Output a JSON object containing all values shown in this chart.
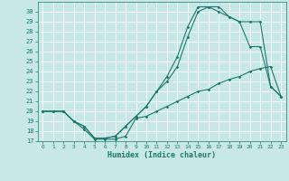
{
  "title": "",
  "xlabel": "Humidex (Indice chaleur)",
  "ylabel": "",
  "bg_color": "#c8e8e8",
  "line_color": "#1a7a6a",
  "grid_color": "#ffffff",
  "xlim": [
    -0.5,
    23.5
  ],
  "ylim": [
    17,
    31
  ],
  "xticks": [
    0,
    1,
    2,
    3,
    4,
    5,
    6,
    7,
    8,
    9,
    10,
    11,
    12,
    13,
    14,
    15,
    16,
    17,
    18,
    19,
    20,
    21,
    22,
    23
  ],
  "yticks": [
    17,
    18,
    19,
    20,
    21,
    22,
    23,
    24,
    25,
    26,
    27,
    28,
    29,
    30
  ],
  "line1_x": [
    0,
    1,
    2,
    3,
    4,
    5,
    6,
    7,
    8,
    9,
    10,
    11,
    12,
    13,
    14,
    15,
    16,
    17,
    18,
    19,
    20,
    21,
    22,
    23
  ],
  "line1_y": [
    20.0,
    20.0,
    20.0,
    19.0,
    18.2,
    17.2,
    17.2,
    17.2,
    17.5,
    19.3,
    19.5,
    20.0,
    20.5,
    21.0,
    21.5,
    22.0,
    22.2,
    22.8,
    23.2,
    23.5,
    24.0,
    24.3,
    24.5,
    21.5
  ],
  "line2_x": [
    0,
    1,
    2,
    3,
    4,
    5,
    6,
    7,
    8,
    9,
    10,
    11,
    12,
    13,
    14,
    15,
    16,
    17,
    18,
    19,
    20,
    21,
    22,
    23
  ],
  "line2_y": [
    20.0,
    20.0,
    20.0,
    19.0,
    18.5,
    17.3,
    17.3,
    17.5,
    18.5,
    19.5,
    20.5,
    22.0,
    23.0,
    24.5,
    27.5,
    30.0,
    30.5,
    30.5,
    29.5,
    29.0,
    26.5,
    26.5,
    22.5,
    21.5
  ],
  "line3_x": [
    0,
    1,
    2,
    3,
    4,
    5,
    6,
    7,
    8,
    9,
    10,
    11,
    12,
    13,
    14,
    15,
    16,
    17,
    18,
    19,
    20,
    21,
    22,
    23
  ],
  "line3_y": [
    20.0,
    20.0,
    20.0,
    19.0,
    18.5,
    17.3,
    17.3,
    17.5,
    18.5,
    19.5,
    20.5,
    22.0,
    23.5,
    25.5,
    28.5,
    30.5,
    30.5,
    30.0,
    29.5,
    29.0,
    29.0,
    29.0,
    22.5,
    21.5
  ],
  "tick_fontsize": 5,
  "xlabel_fontsize": 6
}
